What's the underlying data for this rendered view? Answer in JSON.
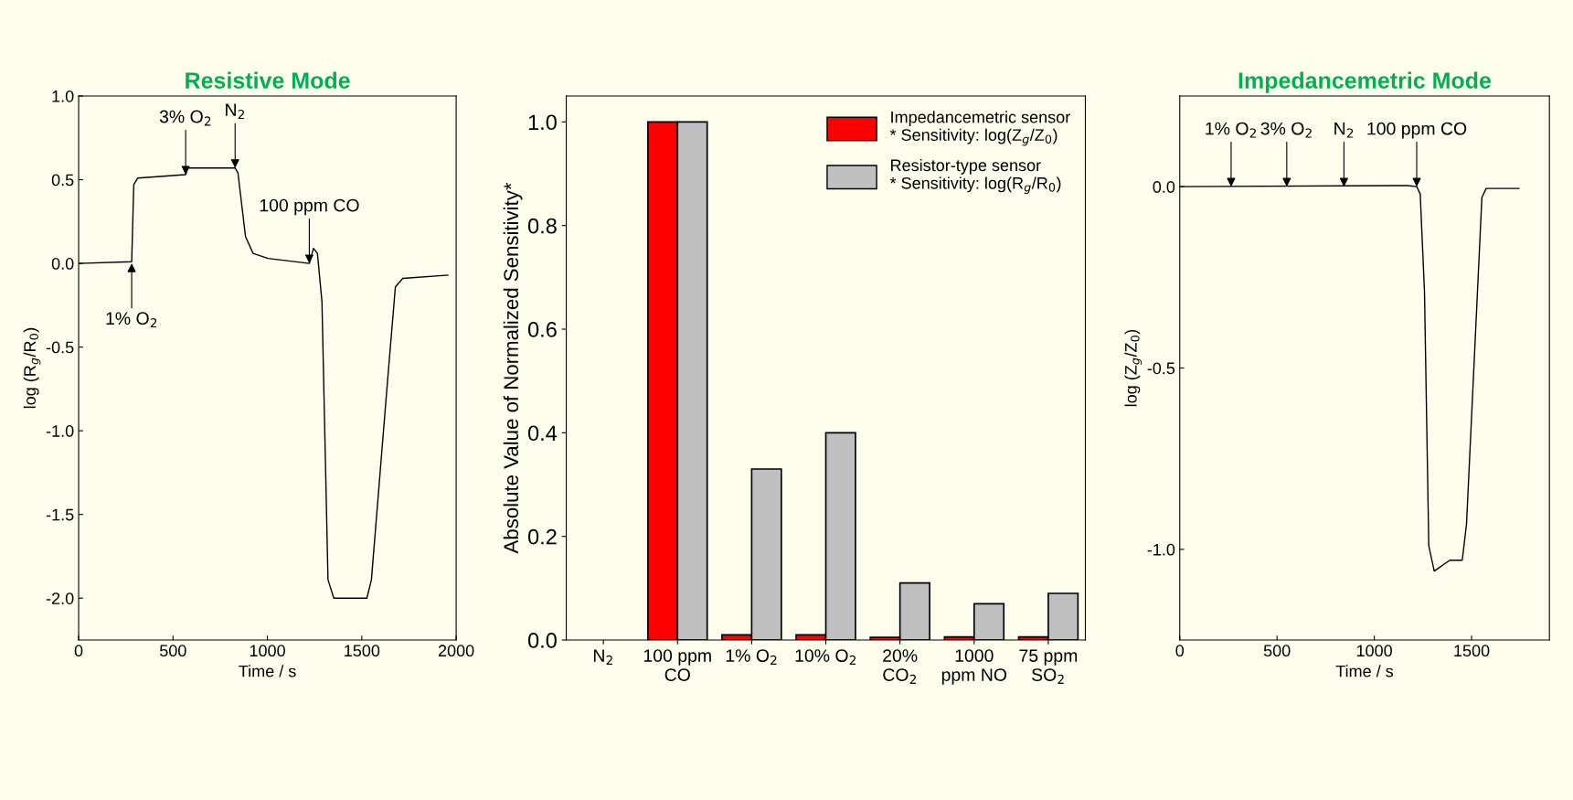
{
  "chart_data": [
    {
      "type": "line",
      "title": "Resistive Mode",
      "xlabel": "Time / s",
      "ylabel": "log (R$_{g}$/R$_{0}$)",
      "xlim": [
        0,
        2000
      ],
      "xticks": [
        0,
        500,
        1000,
        1500,
        2000
      ],
      "ylim": [
        -2.25,
        1.0
      ],
      "yticks": [
        {
          "value": -2.0,
          "label": "-2.0"
        },
        {
          "value": -1.5,
          "label": "-1.5"
        },
        {
          "value": -1.0,
          "label": "-1.0"
        },
        {
          "value": -0.5,
          "label": "-0.5"
        },
        {
          "value": 0.0,
          "label": "0.0"
        },
        {
          "value": 0.5,
          "label": "0.5"
        },
        {
          "value": 1.0,
          "label": "1.0"
        }
      ],
      "grid": false,
      "marker": "none",
      "line_style": "solid",
      "series": [
        {
          "color": "#000000",
          "x": [
            0,
            281,
            292,
            313,
            567,
            578,
            829,
            844,
            884,
            924,
            1003,
            1222,
            1244,
            1265,
            1289,
            1321,
            1352,
            1527,
            1551,
            1638,
            1678,
            1717,
            1956
          ],
          "values": [
            0.0,
            0.01,
            0.47,
            0.51,
            0.53,
            0.57,
            0.57,
            0.54,
            0.16,
            0.06,
            0.03,
            0.0,
            0.09,
            0.06,
            -0.23,
            -1.89,
            -2.0,
            -2.0,
            -1.89,
            -0.68,
            -0.14,
            -0.09,
            -0.07
          ]
        }
      ],
      "annotations": [
        {
          "text": "1% O$_{2}$",
          "x": 281,
          "y": 0.0
        },
        {
          "text": "3% O$_{2}$",
          "x": 567,
          "y": 0.53
        },
        {
          "text": "N$_{2}$",
          "x": 829,
          "y": 0.57
        },
        {
          "text": "100 ppm CO",
          "x": 1222,
          "y": 0.0
        }
      ]
    },
    {
      "type": "bar",
      "ylabel": "Absolute Value of Normalized Sensitivity*",
      "categories": [
        "N$_{2}$",
        "100 ppm\nCO",
        "1% O$_{2}$",
        "10% O$_{2}$",
        "20%\nCO$_{2}$",
        "1000\nppm NO",
        "75 ppm\nSO$_{2}$"
      ],
      "ylim": [
        0,
        1.05
      ],
      "yticks": [
        {
          "value": 0.0,
          "label": "0.0"
        },
        {
          "value": 0.2,
          "label": "0.2"
        },
        {
          "value": 0.4,
          "label": "0.4"
        },
        {
          "value": 0.6,
          "label": "0.6"
        },
        {
          "value": 0.8,
          "label": "0.8"
        },
        {
          "value": 1.0,
          "label": "1.0"
        }
      ],
      "grid": false,
      "legend": "top right",
      "series": [
        {
          "name": "Impedancemetric sensor\n* Sensitivity: log(Z$_{g}$/Z$_{0}$)",
          "color": "#ff0000",
          "values": [
            null,
            1.0,
            0.01,
            0.01,
            0.005,
            0.006,
            0.006
          ]
        },
        {
          "name": "Resistor-type sensor\n* Sensitivity: log(R$_{g}$/R$_{0}$)",
          "color": "#c0c0c0",
          "values": [
            null,
            1.0,
            0.33,
            0.4,
            0.11,
            0.07,
            0.09
          ]
        }
      ]
    },
    {
      "type": "line",
      "title": "Impedancemetric Mode",
      "xlabel": "Time / s",
      "ylabel": "log (Z$_{g}$/Z$_{0}$)",
      "xlim": [
        0,
        1900
      ],
      "xticks": [
        0,
        500,
        1000,
        1500
      ],
      "ylim": [
        -1.25,
        0.25
      ],
      "yticks": [
        {
          "value": -1.0,
          "label": "-1.0"
        },
        {
          "value": -0.5,
          "label": "-0.5"
        },
        {
          "value": 0.0,
          "label": "0.0"
        }
      ],
      "grid": false,
      "marker": "none",
      "line_style": "solid",
      "series": [
        {
          "color": "#000000",
          "x": [
            0,
            1171,
            1218,
            1236,
            1258,
            1280,
            1308,
            1388,
            1452,
            1474,
            1517,
            1553,
            1575,
            1744
          ],
          "values": [
            0.0,
            0.003,
            0.0,
            -0.02,
            -0.29,
            -0.99,
            -1.06,
            -1.03,
            -1.03,
            -0.93,
            -0.44,
            -0.03,
            -0.005,
            -0.005
          ]
        }
      ],
      "annotations": [
        {
          "text": "1% O$_{2}$",
          "x": 264,
          "y": 0.0
        },
        {
          "text": "3% O$_{2}$",
          "x": 550,
          "y": 0.0
        },
        {
          "text": "N$_{2}$",
          "x": 844,
          "y": 0.0
        },
        {
          "text": "100 ppm CO",
          "x": 1218,
          "y": 0.0
        }
      ]
    }
  ]
}
